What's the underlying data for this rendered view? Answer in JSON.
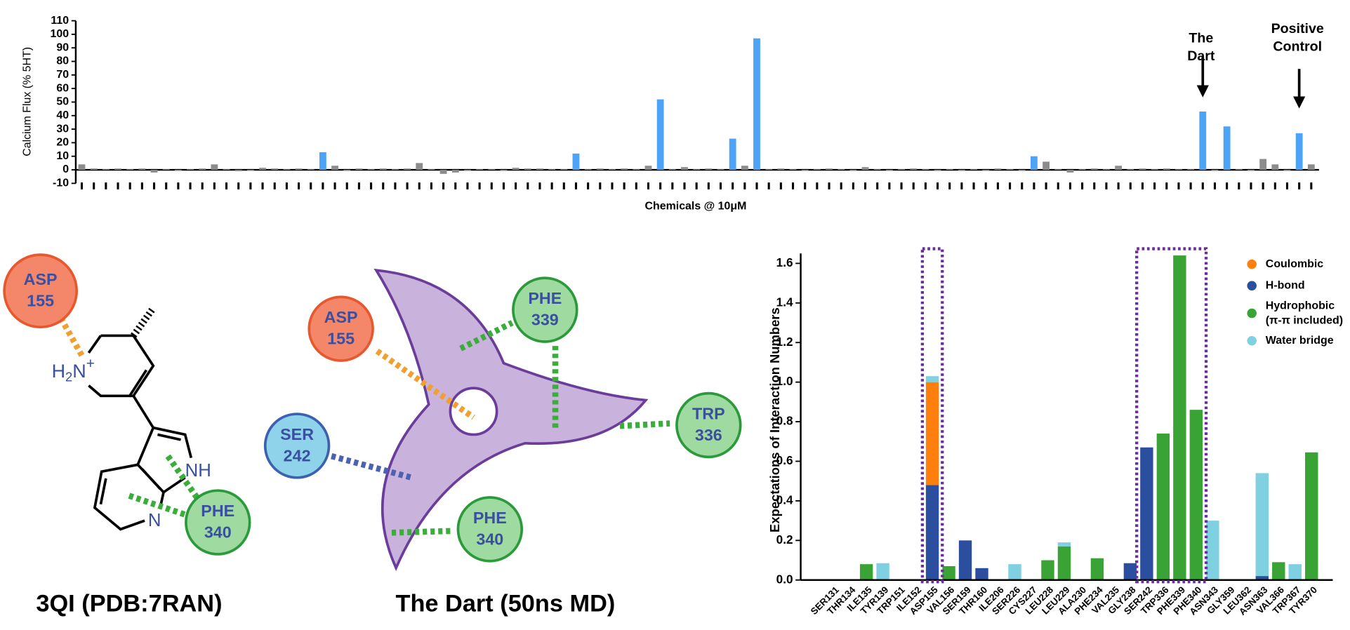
{
  "chart_data": [
    {
      "type": "bar",
      "ylabel": "Calcium Flux (% 5HT)",
      "xlabel": "Chemicals @ 10μM",
      "categories": [
        null,
        null,
        null,
        null,
        null,
        null,
        null,
        null,
        null,
        null,
        null,
        null,
        null,
        null,
        null,
        null,
        null,
        null,
        null,
        null,
        null,
        null,
        null,
        null,
        null,
        null,
        null,
        null,
        null,
        null,
        null,
        null,
        null,
        null,
        null,
        null,
        null,
        null,
        null,
        null,
        null,
        null,
        null,
        null,
        null,
        null,
        null,
        null,
        null,
        null,
        null,
        null,
        null,
        null,
        null,
        null,
        null,
        null,
        null,
        null,
        null,
        null,
        null,
        null,
        null,
        null,
        null,
        null,
        null,
        null,
        null,
        null,
        null,
        null,
        null,
        null,
        null,
        null,
        null,
        null,
        null,
        null,
        null,
        null,
        null,
        null,
        null,
        null,
        null,
        null,
        null,
        null,
        null,
        null,
        null,
        null,
        null,
        null,
        null,
        null,
        null,
        null,
        null
      ],
      "values": [
        4,
        1,
        0.5,
        1,
        0.5,
        1,
        -2,
        0.5,
        -0.5,
        0.5,
        1,
        4,
        0.5,
        -1,
        -0.5,
        1.5,
        1,
        0.5,
        1,
        0.5,
        13,
        3,
        -0.5,
        1,
        0.5,
        1,
        0.5,
        1,
        5,
        0.5,
        -3,
        -2,
        -0.5,
        0.5,
        0.5,
        -0.5,
        1.5,
        1,
        1,
        0.5,
        0.5,
        12,
        0.5,
        1,
        0.5,
        1,
        0.5,
        3,
        52,
        0.5,
        2,
        0.5,
        1,
        0.5,
        23,
        3,
        97,
        0.5,
        1,
        0.5,
        -0.5,
        0.5,
        1,
        0.5,
        -0.5,
        2,
        0.5,
        -0.5,
        0.5,
        1,
        0.5,
        -0.5,
        0.5,
        -0.5,
        0.5,
        -0.5,
        1,
        0.5,
        -0.5,
        10,
        6,
        0.5,
        -2,
        0.5,
        1,
        0.5,
        3,
        0.5,
        1,
        0.5,
        1,
        0.5,
        0.5,
        43,
        -0.5,
        32,
        0.5,
        -0.5,
        8,
        4,
        -0.5,
        27,
        4
      ],
      "colors": [
        "#8c8c8c",
        "#8c8c8c",
        "#8c8c8c",
        "#8c8c8c",
        "#8c8c8c",
        "#8c8c8c",
        "#8c8c8c",
        "#8c8c8c",
        "#8c8c8c",
        "#8c8c8c",
        "#8c8c8c",
        "#8c8c8c",
        "#8c8c8c",
        "#8c8c8c",
        "#8c8c8c",
        "#8c8c8c",
        "#8c8c8c",
        "#8c8c8c",
        "#8c8c8c",
        "#8c8c8c",
        "#4da3f5",
        "#8c8c8c",
        "#8c8c8c",
        "#8c8c8c",
        "#8c8c8c",
        "#8c8c8c",
        "#8c8c8c",
        "#8c8c8c",
        "#8c8c8c",
        "#8c8c8c",
        "#8c8c8c",
        "#8c8c8c",
        "#8c8c8c",
        "#8c8c8c",
        "#8c8c8c",
        "#8c8c8c",
        "#8c8c8c",
        "#8c8c8c",
        "#8c8c8c",
        "#8c8c8c",
        "#8c8c8c",
        "#4da3f5",
        "#8c8c8c",
        "#8c8c8c",
        "#8c8c8c",
        "#8c8c8c",
        "#8c8c8c",
        "#8c8c8c",
        "#4da3f5",
        "#8c8c8c",
        "#8c8c8c",
        "#8c8c8c",
        "#8c8c8c",
        "#8c8c8c",
        "#4da3f5",
        "#8c8c8c",
        "#4da3f5",
        "#8c8c8c",
        "#8c8c8c",
        "#8c8c8c",
        "#8c8c8c",
        "#8c8c8c",
        "#8c8c8c",
        "#8c8c8c",
        "#8c8c8c",
        "#8c8c8c",
        "#8c8c8c",
        "#8c8c8c",
        "#8c8c8c",
        "#8c8c8c",
        "#8c8c8c",
        "#8c8c8c",
        "#8c8c8c",
        "#8c8c8c",
        "#8c8c8c",
        "#8c8c8c",
        "#8c8c8c",
        "#8c8c8c",
        "#8c8c8c",
        "#4da3f5",
        "#8c8c8c",
        "#8c8c8c",
        "#8c8c8c",
        "#8c8c8c",
        "#8c8c8c",
        "#8c8c8c",
        "#8c8c8c",
        "#8c8c8c",
        "#8c8c8c",
        "#8c8c8c",
        "#8c8c8c",
        "#8c8c8c",
        "#8c8c8c",
        "#4da3f5",
        "#8c8c8c",
        "#4da3f5",
        "#8c8c8c",
        "#8c8c8c",
        "#8c8c8c",
        "#8c8c8c",
        "#8c8c8c",
        "#4da3f5",
        "#8c8c8c"
      ],
      "ylim": [
        -10,
        110
      ],
      "yticks": [
        -10,
        0,
        10,
        20,
        30,
        40,
        50,
        60,
        70,
        80,
        90,
        100,
        110
      ],
      "annotations": [
        "The Dart",
        "Positive Control"
      ]
    },
    {
      "type": "stacked_bar",
      "ylabel": "Expectations of Interaction Numbers",
      "categories": [
        "SER131",
        "THR134",
        "ILE135",
        "TYR139",
        "TRP151",
        "ILE152",
        "ASP155",
        "VAL156",
        "SER159",
        "THR160",
        "ILE206",
        "SER226",
        "CYS227",
        "LEU228",
        "LEU229",
        "ALA230",
        "PHE234",
        "VAL235",
        "GLY238",
        "SER242",
        "TRP336",
        "PHE339",
        "PHE340",
        "ASN343",
        "GLY359",
        "LEU362",
        "ASN363",
        "VAL366",
        "TRP367",
        "TYR370"
      ],
      "series": [
        {
          "name": "Coulombic",
          "color": "#ff7f0e",
          "values": [
            0,
            0,
            0,
            0,
            0,
            0,
            0.52,
            0,
            0,
            0,
            0,
            0,
            0,
            0,
            0,
            0,
            0,
            0,
            0,
            0,
            0,
            0,
            0,
            0,
            0,
            0,
            0,
            0,
            0,
            0
          ]
        },
        {
          "name": "H-bond",
          "color": "#2b4f9e",
          "values": [
            0,
            0,
            0,
            0,
            0,
            0,
            0.48,
            0,
            0.2,
            0.06,
            0,
            0,
            0,
            0,
            0,
            0,
            0,
            0,
            0.085,
            0.67,
            0,
            0,
            0,
            0,
            0,
            0,
            0.02,
            0,
            0,
            0
          ]
        },
        {
          "name": "Hydrophobic (π-π included)",
          "color": "#3aa335",
          "values": [
            0,
            0,
            0.08,
            0,
            0,
            0,
            0,
            0.07,
            0,
            0,
            0,
            0,
            0,
            0.1,
            0.17,
            0,
            0.11,
            0,
            0,
            0,
            0.74,
            1.64,
            0.86,
            0,
            0,
            0,
            0,
            0.09,
            0,
            0.645
          ]
        },
        {
          "name": "Water bridge",
          "color": "#7fd0e0",
          "values": [
            0,
            0,
            0,
            0.085,
            0,
            0,
            0.03,
            0,
            0,
            0,
            0,
            0.08,
            0,
            0,
            0.02,
            0,
            0,
            0,
            0,
            0,
            0,
            0,
            0,
            0.3,
            0,
            0,
            0.52,
            0,
            0.08,
            0
          ]
        }
      ],
      "ylim": [
        0,
        1.65
      ],
      "yticks": [
        {
          "value": 0,
          "label": "0.0"
        },
        0.2,
        0.4,
        0.6,
        0.8,
        {
          "value": 1,
          "label": "1.0"
        },
        1.2,
        1.4,
        1.6
      ],
      "legend": "upper right"
    }
  ],
  "diagrams": {
    "left": {
      "caption": "3QI (PDB:7RAN)",
      "residues": [
        {
          "name": "ASP",
          "number": "155"
        },
        {
          "name": "PHE",
          "number": "340"
        }
      ],
      "amine": [
        "H",
        "2",
        "N",
        "+"
      ],
      "atoms": [
        "NH",
        "N"
      ]
    },
    "right": {
      "caption": "The Dart (50ns MD)",
      "residues": [
        {
          "name": "ASP",
          "number": "155"
        },
        {
          "name": "PHE",
          "number": "339"
        },
        {
          "name": "TRP",
          "number": "336"
        },
        {
          "name": "SER",
          "number": "242"
        },
        {
          "name": "PHE",
          "number": "340"
        }
      ]
    }
  }
}
